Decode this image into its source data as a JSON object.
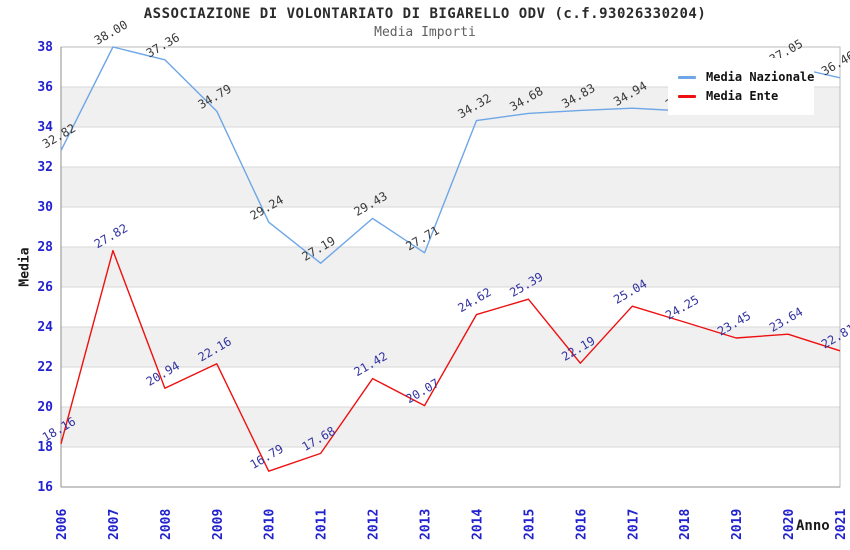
{
  "header": {
    "title": "ASSOCIAZIONE DI VOLONTARIATO DI BIGARELLO ODV (c.f.93026330204)",
    "subtitle": "Media Importi"
  },
  "legend": {
    "items": [
      {
        "label": "Media Nazionale",
        "color": "#6EA6E6"
      },
      {
        "label": "Media Ente",
        "color": "#EE1010"
      }
    ]
  },
  "colors": {
    "tick_label": "#2222CF",
    "grid_line": "#D7D7D7",
    "band_fill": "#F0F0F0",
    "border": "#BBBBBB",
    "axis": "#8F8F8F",
    "national_line": "#6EA6E6",
    "national_label": "#3A3A3A",
    "ente_line": "#EE1010",
    "ente_label": "#3333A0"
  },
  "chart_data": {
    "type": "line",
    "title": "ASSOCIAZIONE DI VOLONTARIATO DI BIGARELLO ODV (c.f.93026330204)",
    "subtitle": "Media Importi",
    "xlabel": "Anno",
    "ylabel": "Media",
    "x": [
      "2006",
      "2007",
      "2008",
      "2009",
      "2010",
      "2011",
      "2012",
      "2013",
      "2014",
      "2015",
      "2016",
      "2017",
      "2018",
      "2019",
      "2020",
      "2021"
    ],
    "ylim": [
      16,
      38
    ],
    "yticks": [
      38,
      36,
      34,
      32,
      30,
      28,
      26,
      24,
      22,
      20,
      18,
      16
    ],
    "grid": true,
    "legend_position": "top-right-overlay",
    "series": [
      {
        "name": "Media Nazionale",
        "color": "#6EA6E6",
        "label_color": "#3A3A3A",
        "values": [
          32.82,
          38.0,
          37.36,
          34.79,
          29.24,
          27.19,
          29.43,
          27.71,
          34.32,
          34.68,
          34.83,
          34.94,
          34.8,
          34.85,
          37.05,
          36.46
        ],
        "labels": [
          "32.82",
          "38.00",
          "37.36",
          "34.79",
          "29.24",
          "27.19",
          "29.43",
          "27.71",
          "34.32",
          "34.68",
          "34.83",
          "34.94",
          "34.80",
          "34.85",
          "37.05",
          "36.46"
        ]
      },
      {
        "name": "Media Ente",
        "color": "#EE1010",
        "label_color": "#3333A0",
        "values": [
          18.16,
          27.82,
          20.94,
          22.16,
          16.79,
          17.68,
          21.42,
          20.07,
          24.62,
          25.39,
          22.19,
          25.04,
          24.25,
          23.45,
          23.64,
          22.81
        ],
        "labels": [
          "18.16",
          "27.82",
          "20.94",
          "22.16",
          "16.79",
          "17.68",
          "21.42",
          "20.07",
          "24.62",
          "25.39",
          "22.19",
          "25.04",
          "24.25",
          "23.45",
          "23.64",
          "22.81"
        ]
      }
    ]
  }
}
